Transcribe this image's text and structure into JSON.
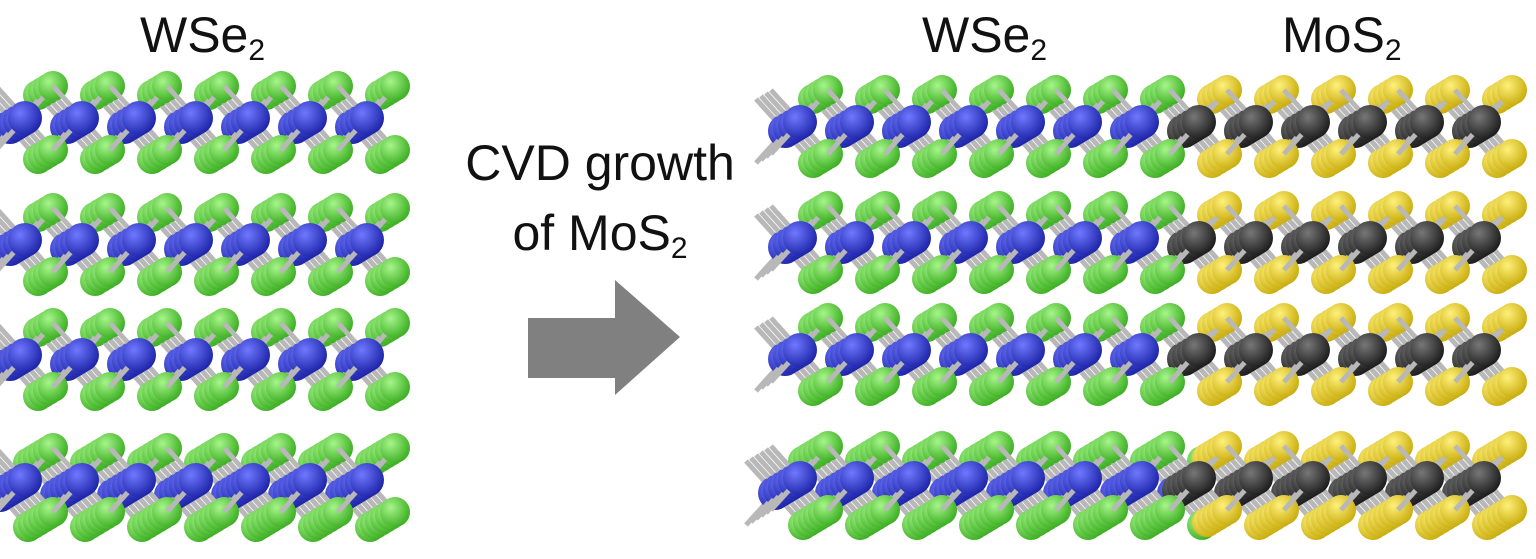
{
  "left_panel": {
    "label": "WSe",
    "label_sub": "2",
    "layers": 4
  },
  "process": {
    "line1": "CVD growth",
    "line2": "of MoS",
    "line2_sub": "2",
    "arrow": "right-arrow"
  },
  "right_panel": {
    "labels": [
      {
        "text": "WSe",
        "sub": "2"
      },
      {
        "text": "MoS",
        "sub": "2"
      }
    ],
    "layers": 4
  },
  "colors": {
    "W": "#2b34d6",
    "Se": "#5cd63c",
    "Mo": "#333333",
    "S": "#e6d01e",
    "bond": "#b8b8b8",
    "arrow": "#808080"
  }
}
